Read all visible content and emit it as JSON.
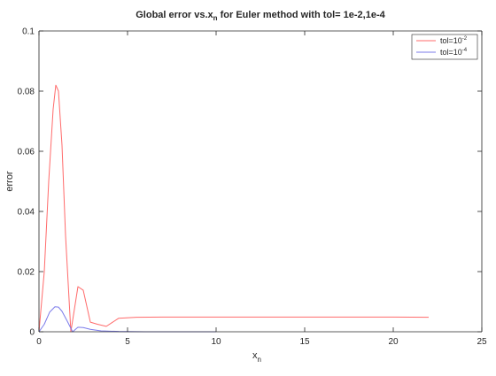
{
  "chart_data": {
    "type": "line",
    "title": {
      "pre": "Global error vs.x",
      "sub": "n",
      "post": " for Euler method with tol= 1e-2,1e-4"
    },
    "xlabel": {
      "base": "x",
      "sub": "n"
    },
    "ylabel": "error",
    "xlim": [
      0,
      25
    ],
    "ylim": [
      0,
      0.1
    ],
    "xticks": [
      0,
      5,
      10,
      15,
      20,
      25
    ],
    "xtick_labels": [
      "0",
      "5",
      "10",
      "15",
      "20",
      "25"
    ],
    "yticks": [
      0,
      0.02,
      0.04,
      0.06,
      0.08,
      0.1
    ],
    "ytick_labels": [
      "0",
      "0.02",
      "0.04",
      "0.06",
      "0.08",
      "0.1"
    ],
    "grid": false,
    "legend": {
      "placement": "top-right"
    },
    "series": [
      {
        "name": {
          "base": "tol=10",
          "sup": "-2"
        },
        "color": "#ff6b6b",
        "x": [
          0,
          0.3,
          0.55,
          0.8,
          0.95,
          1.1,
          1.3,
          1.5,
          1.8,
          2.2,
          2.5,
          2.9,
          3.3,
          3.8,
          4.5,
          5.5,
          7,
          10,
          15,
          20,
          22
        ],
        "y": [
          0,
          0.02,
          0.05,
          0.074,
          0.082,
          0.08,
          0.062,
          0.032,
          0.0,
          0.015,
          0.0138,
          0.0032,
          0.0025,
          0.0018,
          0.0045,
          0.0048,
          0.0049,
          0.0049,
          0.0049,
          0.0049,
          0.0048
        ]
      },
      {
        "name": {
          "base": "tol=10",
          "sup": "-4"
        },
        "color": "#7b7bea",
        "x": [
          0,
          0.3,
          0.6,
          0.9,
          1.1,
          1.3,
          1.6,
          1.9,
          2.2,
          2.5,
          2.9,
          3.5,
          4.5,
          6,
          10
        ],
        "y": [
          0,
          0.0025,
          0.0065,
          0.0083,
          0.0082,
          0.0068,
          0.0035,
          0.0,
          0.0015,
          0.0014,
          0.0008,
          0.0003,
          0.0001,
          0.0,
          0.0
        ]
      }
    ]
  }
}
